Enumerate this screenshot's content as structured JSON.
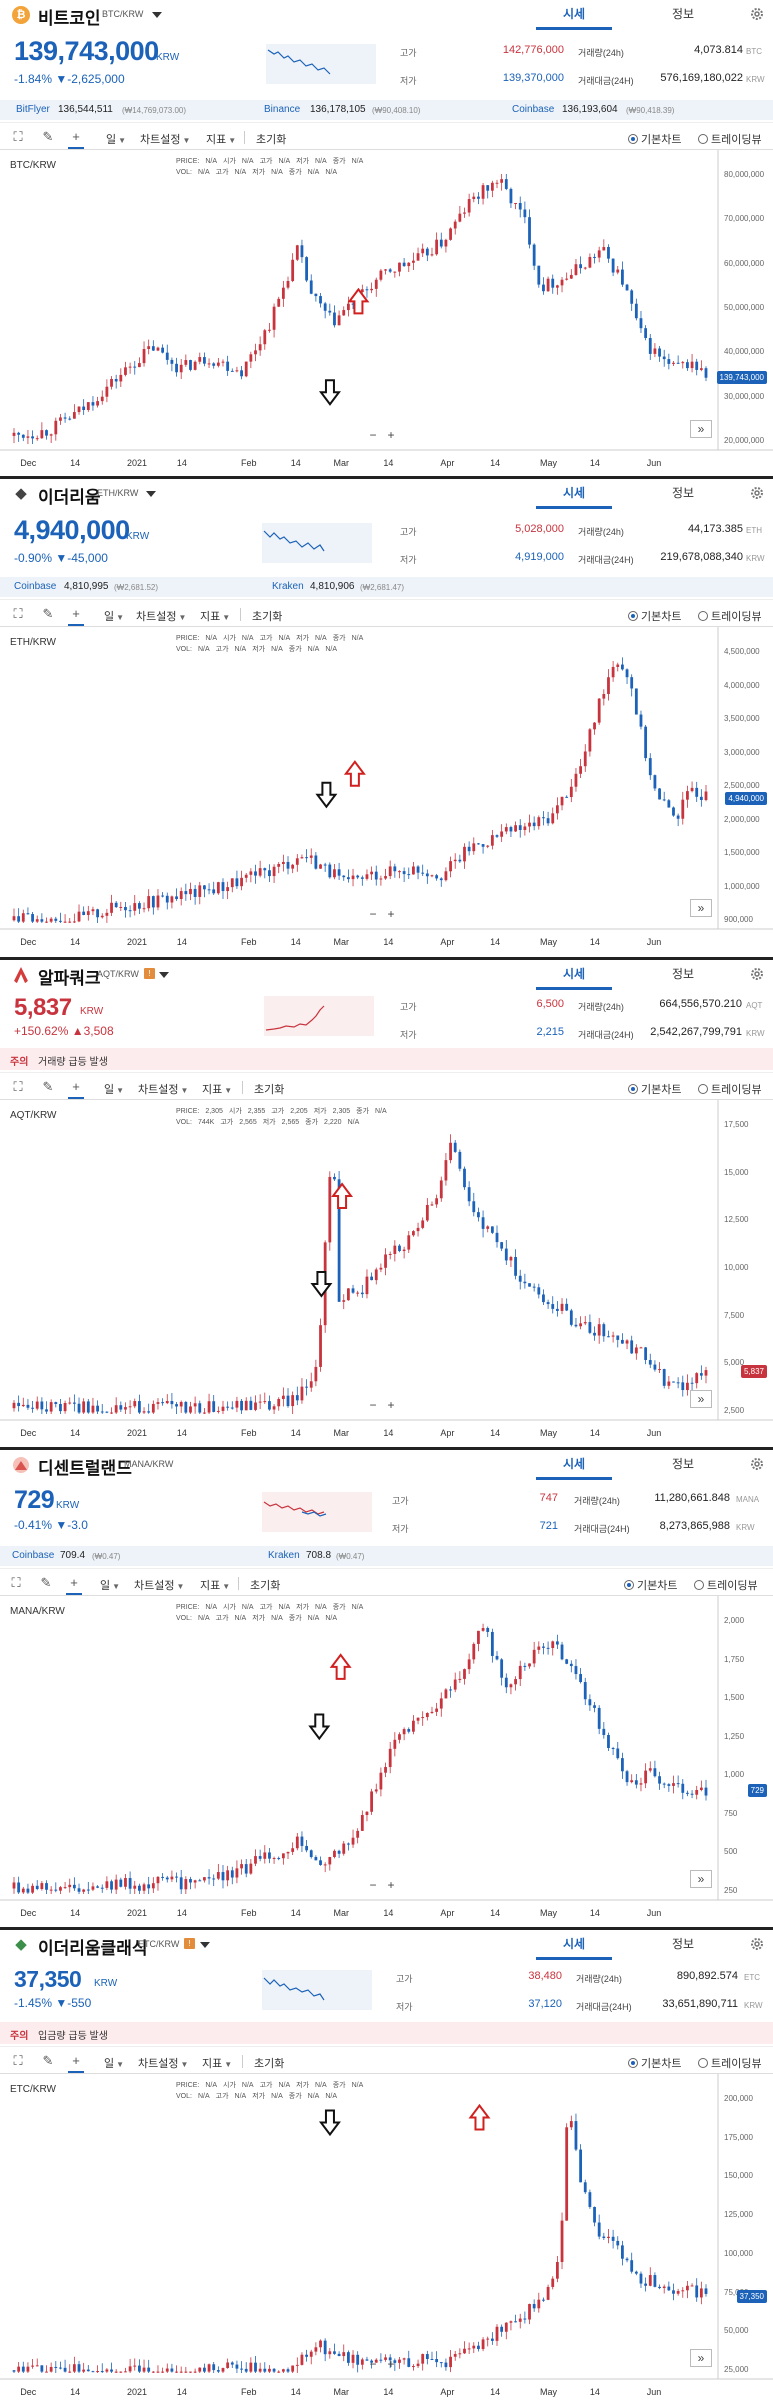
{
  "tabs": {
    "market": "시세",
    "info": "정보"
  },
  "toolbar": {
    "period": "일",
    "chart_settings": "차트설정",
    "indicators": "지표",
    "reset": "초기화",
    "basic_chart": "기본차트",
    "tradingview": "트레이딩뷰"
  },
  "labels": {
    "high": "고가",
    "low": "저가",
    "volume_24h": "거래량(24h)",
    "value_24h": "거래대금(24H)",
    "warning": "주의",
    "ohlc_price": "PRICE:",
    "ohlc_vol": "VOL:",
    "ohlc_open": "시가",
    "ohlc_high": "고가",
    "ohlc_low": "저가",
    "ohlc_close": "종가",
    "na": "N/A",
    "zoom_minus": "−",
    "zoom_plus": "+",
    "ff": "»"
  },
  "colors": {
    "up": "#c8343e",
    "down": "#1b62b8",
    "accent": "#1b62b8"
  },
  "panels": [
    {
      "name": "비트코인",
      "pair": "BTC/KRW",
      "icon_char": "₿",
      "icon_color": "#f2a33a",
      "price": "139,743,000",
      "unit": "KRW",
      "direction": "down",
      "change": "-1.84% ▼-2,625,000",
      "high": "142,776,000",
      "low": "139,370,000",
      "volume": "4,073.814",
      "volume_unit": "BTC",
      "value": "576,169,180,022",
      "value_unit": "KRW",
      "exchanges": [
        {
          "name": "BitFlyer",
          "price": "136,544,511",
          "krw": "(₩14,769,073.00)"
        },
        {
          "name": "Binance",
          "price": "136,178,105",
          "krw": "(₩90,408.10)"
        },
        {
          "name": "Coinbase",
          "price": "136,193,604",
          "krw": "(₩90,418.39)"
        }
      ],
      "chart_label": "BTC/KRW",
      "current_tag": "139,743,000",
      "y_ticks": [
        "80,000,000",
        "70,000,000",
        "60,000,000",
        "50,000,000",
        "40,000,000",
        "30,000,000",
        "20,000,000"
      ],
      "x_ticks": [
        "Dec",
        "14",
        "2021",
        "14",
        "Feb",
        "14",
        "Mar",
        "14",
        "Apr",
        "14",
        "May",
        "14",
        "Jun"
      ]
    },
    {
      "name": "이더리움",
      "pair": "ETH/KRW",
      "icon_char": "◆",
      "icon_color": "#555555",
      "price": "4,940,000",
      "unit": "KRW",
      "direction": "down",
      "change": "-0.90% ▼-45,000",
      "high": "5,028,000",
      "low": "4,919,000",
      "volume": "44,173.385",
      "volume_unit": "ETH",
      "value": "219,678,088,340",
      "value_unit": "KRW",
      "exchanges": [
        {
          "name": "Coinbase",
          "price": "4,810,995",
          "krw": "(₩2,681.52)"
        },
        {
          "name": "Kraken",
          "price": "4,810,906",
          "krw": "(₩2,681.47)"
        }
      ],
      "chart_label": "ETH/KRW",
      "current_tag": "4,940,000",
      "y_ticks": [
        "4,500,000",
        "4,000,000",
        "3,500,000",
        "3,000,000",
        "2,500,000",
        "2,000,000",
        "1,500,000",
        "1,000,000",
        "900,000"
      ],
      "x_ticks": [
        "Dec",
        "14",
        "2021",
        "14",
        "Feb",
        "14",
        "Mar",
        "14",
        "Apr",
        "14",
        "May",
        "14",
        "Jun"
      ]
    },
    {
      "name": "알파쿼크",
      "pair": "AQT/KRW",
      "icon_char": "A",
      "icon_color": "#d43b3b",
      "price": "5,837",
      "unit": "KRW",
      "direction": "up",
      "change": "+150.62% ▲3,508",
      "high": "6,500",
      "low": "2,215",
      "volume": "664,556,570.210",
      "volume_unit": "AQT",
      "value": "2,542,267,799,791",
      "value_unit": "KRW",
      "warning_text": "거래량 급등 발생",
      "chart_label": "AQT/KRW",
      "ohlc": {
        "open": "2,305",
        "high": "2,355",
        "low": "2,205",
        "close": "2,305",
        "v_open": "744K",
        "v_high": "2,565",
        "v_low": "2,565",
        "v_close": "2,220"
      },
      "current_tag": "5,837",
      "y_ticks": [
        "17,500",
        "15,000",
        "12,500",
        "10,000",
        "7,500",
        "5,000",
        "2,500"
      ],
      "x_ticks": [
        "Dec",
        "14",
        "2021",
        "14",
        "Feb",
        "14",
        "Mar",
        "14",
        "Apr",
        "14",
        "May",
        "14",
        "Jun"
      ]
    },
    {
      "name": "디센트럴랜드",
      "pair": "MANA/KRW",
      "icon_char": "◐",
      "icon_color": "#d9534f",
      "price": "729",
      "unit": "KRW",
      "direction": "down",
      "change": "-0.41% ▼-3.0",
      "high": "747",
      "low": "721",
      "volume": "11,280,661.848",
      "volume_unit": "MANA",
      "value": "8,273,865,988",
      "value_unit": "KRW",
      "exchanges": [
        {
          "name": "Coinbase",
          "price": "709.4",
          "krw": "(₩0.47)"
        },
        {
          "name": "Kraken",
          "price": "708.8",
          "krw": "(₩0.47)"
        }
      ],
      "chart_label": "MANA/KRW",
      "current_tag": "729",
      "y_ticks": [
        "2,000",
        "1,750",
        "1,500",
        "1,250",
        "1,000",
        "750",
        "500",
        "250"
      ],
      "x_ticks": [
        "Dec",
        "14",
        "2021",
        "14",
        "Feb",
        "14",
        "Mar",
        "14",
        "Apr",
        "14",
        "May",
        "14",
        "Jun"
      ]
    },
    {
      "name": "이더리움클래식",
      "pair": "ETC/KRW",
      "icon_char": "◆",
      "icon_color": "#3c8f4a",
      "price": "37,350",
      "unit": "KRW",
      "direction": "down",
      "change": "-1.45% ▼-550",
      "high": "38,480",
      "low": "37,120",
      "volume": "890,892.574",
      "volume_unit": "ETC",
      "value": "33,651,890,711",
      "value_unit": "KRW",
      "warning_text": "입금량 급등 발생",
      "chart_label": "ETC/KRW",
      "current_tag": "37,350",
      "y_ticks": [
        "200,000",
        "175,000",
        "150,000",
        "125,000",
        "100,000",
        "75,000",
        "50,000",
        "25,000"
      ],
      "x_ticks": [
        "Dec",
        "14",
        "2021",
        "14",
        "Feb",
        "14",
        "Mar",
        "14",
        "Apr",
        "14",
        "May",
        "14",
        "Jun"
      ]
    }
  ]
}
